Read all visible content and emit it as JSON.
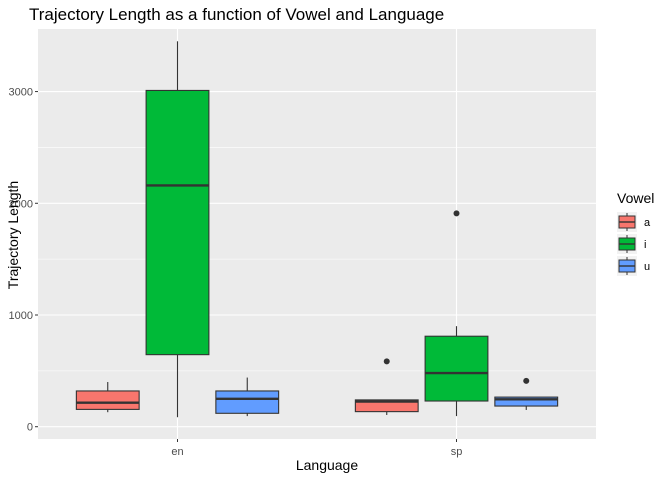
{
  "chart_data": {
    "type": "boxplot",
    "title": "Trajectory Length as a function of Vowel and Language",
    "xlabel": "Language",
    "ylabel": "Trajectory Length",
    "categories": [
      "en",
      "sp"
    ],
    "ylim": [
      -110,
      3560
    ],
    "yticks": [
      0,
      1000,
      2000,
      3000
    ],
    "grid": true,
    "legend": {
      "title": "Vowel",
      "placement": "right"
    },
    "series": [
      {
        "name": "a",
        "color": "#F8766D",
        "boxes": [
          {
            "category": "en",
            "whisker_low": 130,
            "q1": 155,
            "median": 215,
            "q3": 320,
            "whisker_high": 400,
            "outliers": []
          },
          {
            "category": "sp",
            "whisker_low": 105,
            "q1": 135,
            "median": 225,
            "q3": 240,
            "whisker_high": 240,
            "outliers": [
              585
            ]
          }
        ]
      },
      {
        "name": "i",
        "color": "#00BA38",
        "boxes": [
          {
            "category": "en",
            "whisker_low": 85,
            "q1": 645,
            "median": 2160,
            "q3": 3010,
            "whisker_high": 3450,
            "outliers": []
          },
          {
            "category": "sp",
            "whisker_low": 95,
            "q1": 230,
            "median": 480,
            "q3": 810,
            "whisker_high": 900,
            "outliers": [
              1910
            ]
          }
        ]
      },
      {
        "name": "u",
        "color": "#619CFF",
        "boxes": [
          {
            "category": "en",
            "whisker_low": 95,
            "q1": 120,
            "median": 250,
            "q3": 320,
            "whisker_high": 440,
            "outliers": []
          },
          {
            "category": "sp",
            "whisker_low": 150,
            "q1": 185,
            "median": 245,
            "q3": 265,
            "whisker_high": 265,
            "outliers": [
              410
            ]
          }
        ]
      }
    ]
  }
}
